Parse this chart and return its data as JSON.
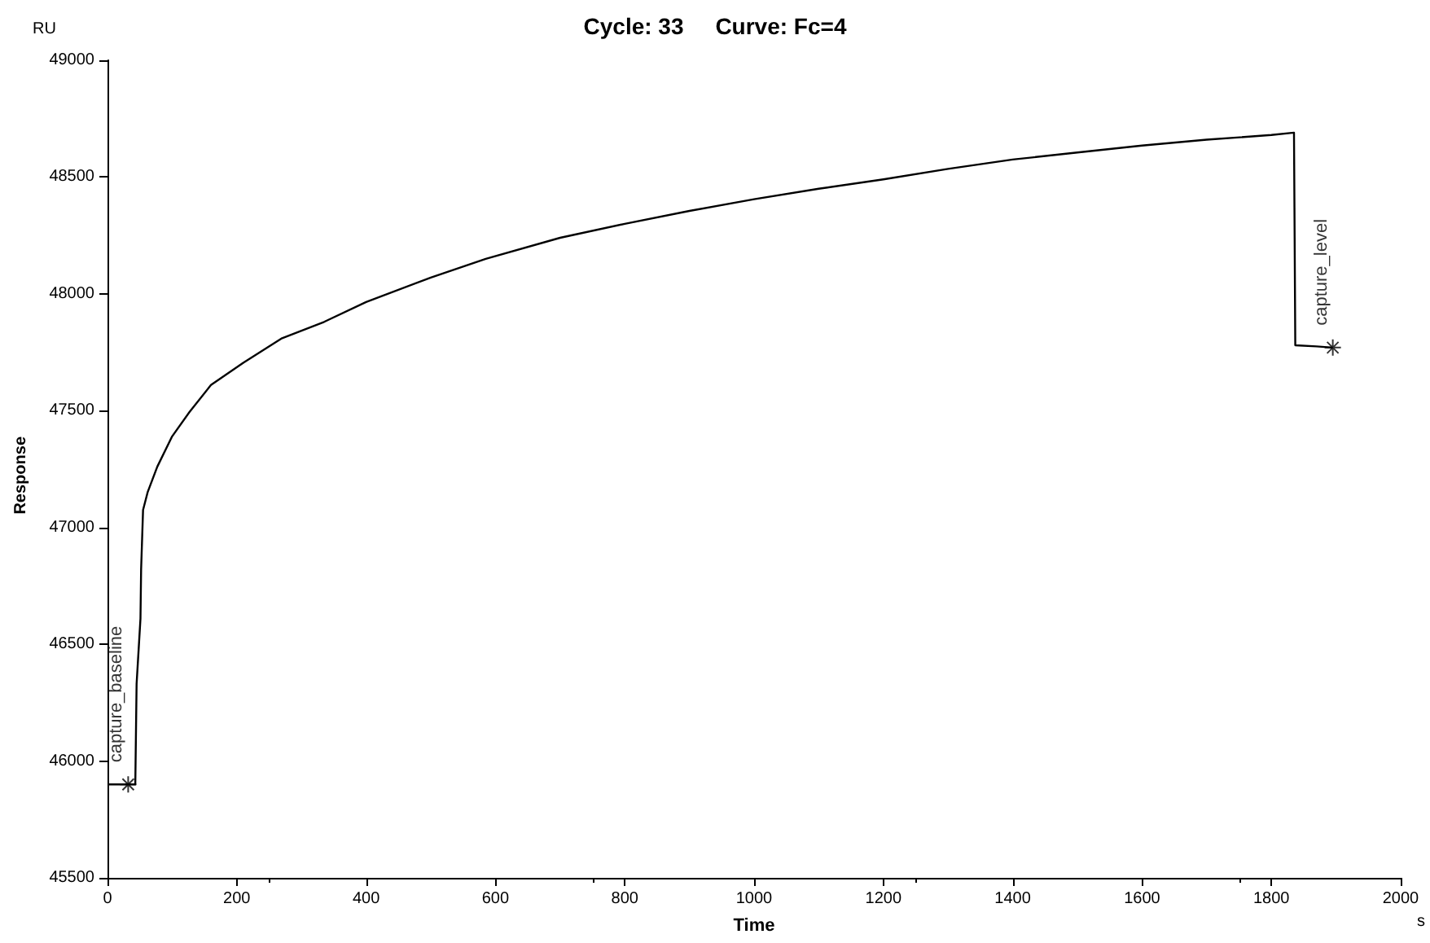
{
  "chart_data": {
    "type": "line",
    "title": "Cycle: 33     Curve: Fc=4",
    "xlabel": "Time",
    "ylabel": "Response",
    "annotations": [
      "RU",
      "s",
      {
        "text": "capture_baseline",
        "x": 32,
        "y": 45900
      },
      {
        "text": "capture_level",
        "x": 1895,
        "y": 47770
      }
    ],
    "series": [
      {
        "color": "#000000",
        "x": [
          0,
          32,
          43,
          45,
          51,
          52,
          55,
          62,
          77,
          100,
          127,
          160,
          210,
          270,
          335,
          400,
          500,
          585,
          700,
          800,
          900,
          1000,
          1100,
          1200,
          1300,
          1400,
          1500,
          1600,
          1700,
          1800,
          1835,
          1836,
          1837,
          1870,
          1895
        ],
        "values": [
          45900,
          45900,
          45900,
          46330,
          46610,
          46820,
          47075,
          47150,
          47260,
          47390,
          47495,
          47610,
          47705,
          47810,
          47880,
          47965,
          48070,
          48150,
          48240,
          48300,
          48355,
          48405,
          48450,
          48490,
          48535,
          48575,
          48605,
          48635,
          48660,
          48680,
          48690,
          48240,
          47780,
          47775,
          47770
        ]
      }
    ],
    "xlim": [
      0,
      2000
    ],
    "xticks": [
      0,
      200,
      400,
      600,
      800,
      1000,
      1200,
      1400,
      1600,
      1800,
      2000
    ],
    "ylim": [
      45500,
      49000
    ],
    "yticks": [
      45500,
      46000,
      46500,
      47000,
      47500,
      48000,
      48500,
      49000
    ],
    "grid": false,
    "marker": "none",
    "line_style": "solid"
  }
}
